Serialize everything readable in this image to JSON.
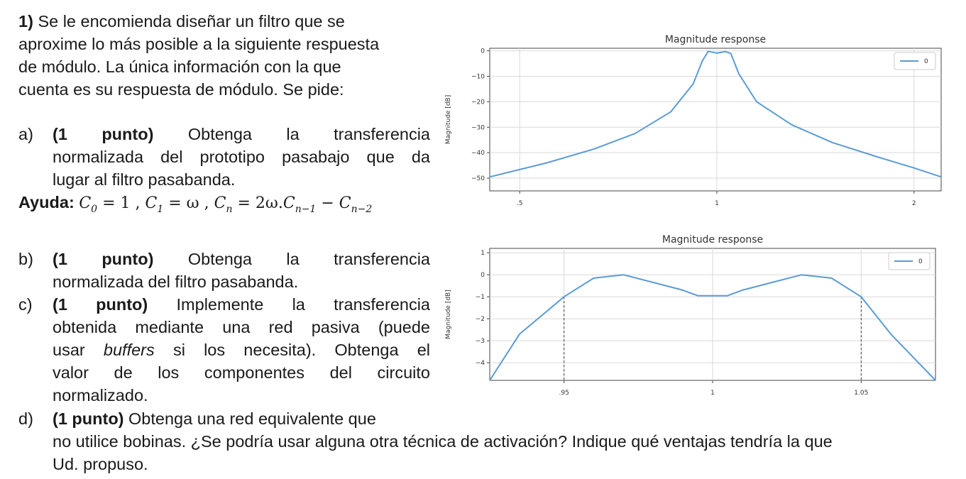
{
  "problem": {
    "number": "1)",
    "intro_lines": [
      "Se le encomienda diseñar un filtro que se",
      "aproxime lo más posible a la siguiente respuesta",
      "de módulo. La única información con la que",
      "cuenta es su respuesta de módulo. Se pide:"
    ],
    "item_a": {
      "label": "a)",
      "points": "(1 punto)",
      "line1_rest": "Obtenga la transferencia",
      "line2": "normalizada del prototipo pasabajo que da",
      "line3": "lugar al filtro pasabanda."
    },
    "hint": {
      "label": "Ayuda:",
      "formula": {
        "c": "C",
        "s0": "0",
        "eq0": " = 1 ,",
        "s1": "1",
        "eq1": " = ω ,",
        "sn": "n",
        "eqn": " = 2ω.",
        "snm1": "n−1",
        "minus": " − ",
        "snm2": "n−2"
      }
    },
    "item_b": {
      "label": "b)",
      "points": "(1 punto)",
      "line1_rest": "Obtenga la transferencia",
      "line2": "normalizada del filtro pasabanda."
    },
    "item_c": {
      "label": "c)",
      "points": "(1 punto)",
      "line1_rest": "Implemente la transferencia",
      "line2": "obtenida mediante una red pasiva (puede",
      "line3_pre": "usar",
      "line3_em": "buffers",
      "line3_post": "si los necesita). Obtenga el",
      "line4": "valor de los componentes del circuito",
      "line5": "normalizado."
    },
    "item_d": {
      "label": "d)",
      "points": "(1 punto)",
      "line1_rest": "Obtenga una red equivalente que",
      "line2": "no utilice bobinas. ¿Se podría usar alguna otra técnica de activación? Indique qué ventajas tendría la que",
      "line3": "Ud. propuso."
    }
  },
  "chart_data": [
    {
      "type": "line",
      "title": "Magnitude response",
      "ylabel": "Magnitude [dB]",
      "xlabel": "",
      "xscale": "log",
      "xlim": [
        0.45,
        2.2
      ],
      "ylim": [
        -55,
        1
      ],
      "x_ticks": [
        0.5,
        1,
        2
      ],
      "x_tick_labels": [
        ".5",
        "1",
        "2"
      ],
      "y_ticks": [
        0,
        -10,
        -20,
        -30,
        -40,
        -50
      ],
      "y_tick_labels": [
        "0",
        "−10",
        "−20",
        "−30",
        "−40",
        "−50"
      ],
      "grid": true,
      "legend_position": "top-right",
      "series": [
        {
          "name": "0",
          "color": "#5b9bd5",
          "x": [
            0.45,
            0.55,
            0.65,
            0.75,
            0.85,
            0.92,
            0.95,
            0.97,
            1.0,
            1.03,
            1.05,
            1.08,
            1.15,
            1.3,
            1.5,
            1.75,
            2.0,
            2.2
          ],
          "y": [
            -49.5,
            -44.0,
            -38.5,
            -32.5,
            -24.0,
            -13.0,
            -4.0,
            -0.2,
            -0.9,
            -0.3,
            -1.0,
            -9.0,
            -20.0,
            -29.0,
            -36.0,
            -41.5,
            -46.0,
            -49.5
          ]
        }
      ]
    },
    {
      "type": "line",
      "title": "Magnitude response",
      "ylabel": "Magnitude [dB]",
      "xlabel": "",
      "xlim": [
        0.925,
        1.075
      ],
      "ylim": [
        -4.8,
        1.2
      ],
      "x_ticks": [
        0.95,
        1,
        1.05
      ],
      "x_tick_labels": [
        ".95",
        "1",
        "1.05"
      ],
      "y_ticks": [
        1,
        0,
        -1,
        -2,
        -3,
        -4
      ],
      "y_tick_labels": [
        "1",
        "0",
        "−1",
        "−2",
        "−3",
        "−4"
      ],
      "grid": true,
      "legend_position": "top-right",
      "annotations": [
        {
          "type": "vline-dashed",
          "x": 0.95,
          "y_top": -1.0
        },
        {
          "type": "vline-dashed",
          "x": 1.05,
          "y_top": -1.0
        }
      ],
      "series": [
        {
          "name": "0",
          "color": "#5b9bd5",
          "x": [
            0.925,
            0.935,
            0.95,
            0.96,
            0.97,
            0.98,
            0.99,
            0.995,
            1.005,
            1.01,
            1.02,
            1.03,
            1.04,
            1.05,
            1.06,
            1.075
          ],
          "y": [
            -4.8,
            -2.7,
            -1.0,
            -0.15,
            0.0,
            -0.35,
            -0.7,
            -0.95,
            -0.95,
            -0.7,
            -0.35,
            0.0,
            -0.15,
            -1.0,
            -2.7,
            -4.8
          ]
        }
      ]
    }
  ]
}
